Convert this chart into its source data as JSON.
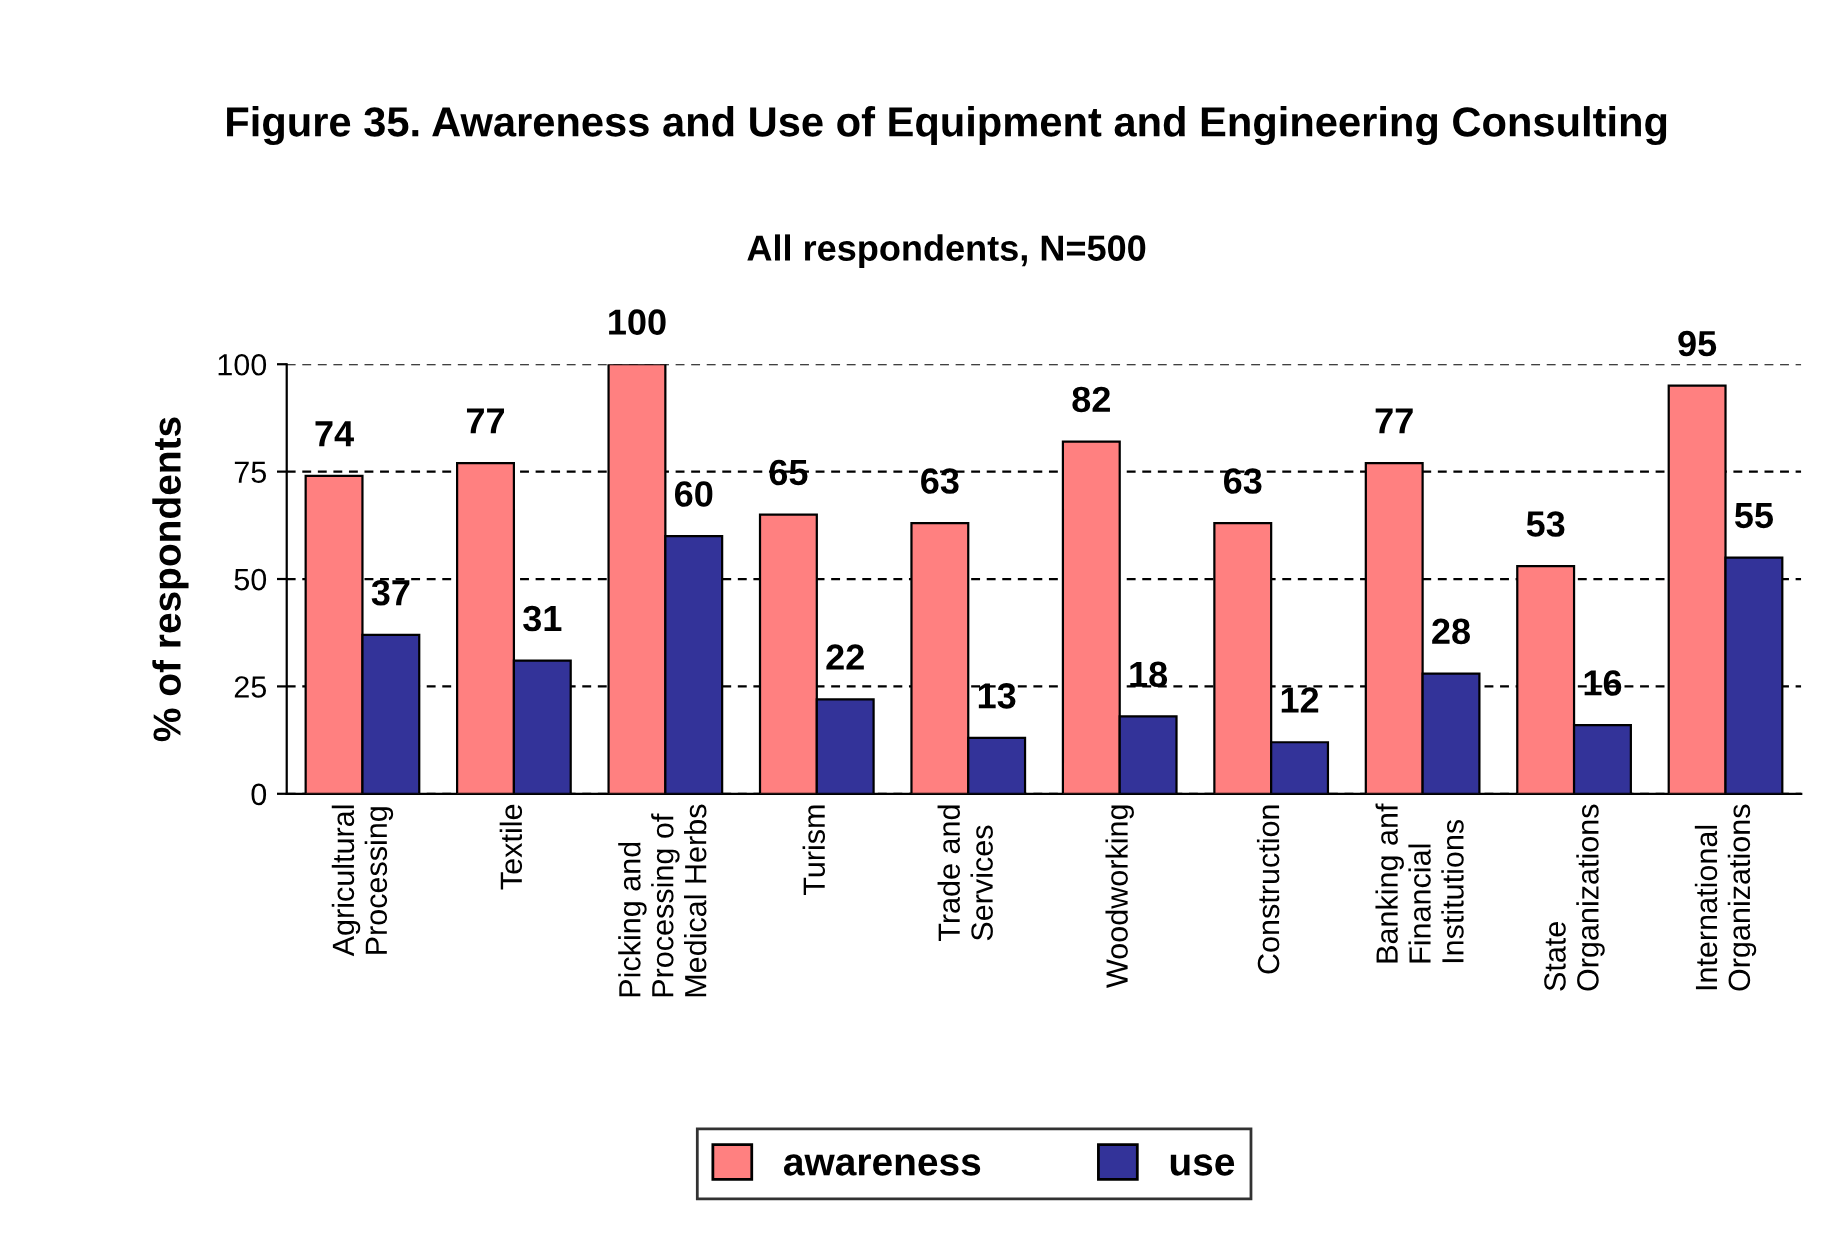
{
  "chart_data": {
    "type": "bar",
    "title": "Figure 35. Awareness and Use of Equipment and Engineering Consulting",
    "subtitle": "All respondents, N=500",
    "ylabel": "% of respondents",
    "categories": [
      "Agricultural\nProcessing",
      "Textile",
      "Picking and\nProcessing of\nMedical Herbs",
      "Turism",
      "Trade and\nServices",
      "Woodworking",
      "Construction",
      "Banking anf\nFinancial\nInstitutions",
      "State\nOrganizations",
      "International\nOrganizations"
    ],
    "series": [
      {
        "name": "awareness",
        "color": "#ff8080",
        "values": [
          74,
          77,
          100,
          65,
          63,
          82,
          63,
          77,
          53,
          95
        ]
      },
      {
        "name": "use",
        "color": "#333399",
        "values": [
          37,
          31,
          60,
          22,
          13,
          18,
          12,
          28,
          16,
          55
        ]
      }
    ],
    "ylim": [
      0,
      100
    ],
    "yticks": [
      0,
      25,
      50,
      75,
      100
    ],
    "grid": "y",
    "legend": "bottom",
    "data_labels": true
  }
}
